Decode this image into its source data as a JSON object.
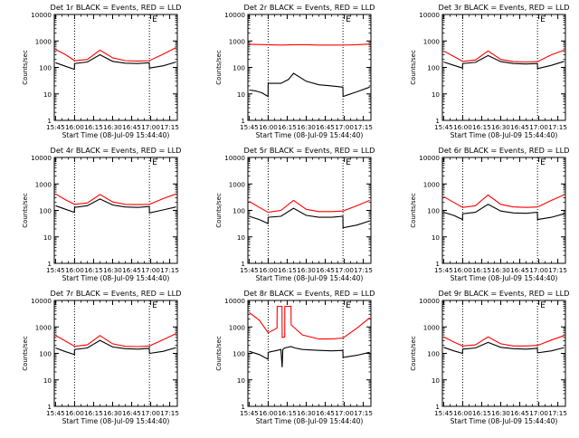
{
  "chart_data": [
    {
      "type": "line",
      "title": "Det 1r BLACK = Events, RED = LLD",
      "xlabel": "Start Time (08-Jul-09 15:44:40)",
      "ylabel": "Counts/sec",
      "ylog": true,
      "ylim": [
        1,
        10000
      ],
      "xlim": [
        -1,
        96
      ],
      "x_tick_values": [
        0,
        15,
        30,
        45,
        60,
        75,
        90
      ],
      "x_tick_labels": [
        "15:45",
        "16:00",
        "16:15",
        "16:30",
        "16:45",
        "17:00",
        "17:15"
      ],
      "y_tick_values": [
        1,
        10,
        100,
        1000,
        10000
      ],
      "y_tick_labels": [
        "1",
        "10",
        "100",
        "1000",
        "10000"
      ],
      "vlines": [
        15,
        74
      ],
      "annotations": [
        "E"
      ],
      "series": [
        {
          "color": "#ff0000",
          "x": [
            0,
            8,
            15,
            25,
            35,
            45,
            55,
            65,
            74,
            85,
            95
          ],
          "y": [
            480,
            300,
            180,
            200,
            450,
            230,
            180,
            175,
            180,
            320,
            560
          ]
        },
        {
          "color": "#000000",
          "x": [
            0,
            8,
            14.9,
            15,
            25,
            35,
            45,
            55,
            65,
            73.9,
            74,
            85,
            95
          ],
          "y": [
            150,
            110,
            85,
            140,
            160,
            300,
            170,
            145,
            140,
            150,
            95,
            115,
            160
          ]
        }
      ]
    },
    {
      "type": "line",
      "title": "Det 2r BLACK = Events, RED = LLD",
      "xlabel": "Start Time (08-Jul-09 15:44:40)",
      "ylabel": "Counts/sec",
      "ylog": true,
      "ylim": [
        1,
        10000
      ],
      "xlim": [
        -1,
        96
      ],
      "x_tick_values": [
        0,
        15,
        30,
        45,
        60,
        75,
        90
      ],
      "x_tick_labels": [
        "15:45",
        "16:00",
        "16:15",
        "16:30",
        "16:45",
        "17:00",
        "17:15"
      ],
      "y_tick_values": [
        1,
        10,
        100,
        1000,
        10000
      ],
      "y_tick_labels": [
        "1",
        "10",
        "100",
        "1000",
        "10000"
      ],
      "vlines": [
        15,
        74
      ],
      "annotations": [
        "E"
      ],
      "series": [
        {
          "color": "#ff0000",
          "x": [
            0,
            15,
            25,
            35,
            45,
            55,
            65,
            74,
            85,
            95
          ],
          "y": [
            750,
            720,
            700,
            720,
            720,
            700,
            700,
            700,
            720,
            760
          ]
        },
        {
          "color": "#000000",
          "x": [
            0,
            5,
            10,
            14.9,
            15,
            25,
            31,
            35,
            45,
            55,
            65,
            73.9,
            74,
            85,
            95
          ],
          "y": [
            14,
            13,
            11,
            8,
            25,
            25,
            35,
            60,
            30,
            22,
            20,
            18,
            8,
            12,
            18
          ]
        }
      ]
    },
    {
      "type": "line",
      "title": "Det 3r BLACK = Events, RED = LLD",
      "xlabel": "Start Time (08-Jul-09 15:44:40)",
      "ylabel": "Counts/sec",
      "ylog": true,
      "ylim": [
        1,
        10000
      ],
      "xlim": [
        -1,
        96
      ],
      "x_tick_values": [
        0,
        15,
        30,
        45,
        60,
        75,
        90
      ],
      "x_tick_labels": [
        "15:45",
        "16:00",
        "16:15",
        "16:30",
        "16:45",
        "17:00",
        "17:15"
      ],
      "y_tick_values": [
        1,
        10,
        100,
        1000,
        10000
      ],
      "y_tick_labels": [
        "1",
        "10",
        "100",
        "1000",
        "10000"
      ],
      "vlines": [
        15,
        74
      ],
      "annotations": [
        "E"
      ],
      "series": [
        {
          "color": "#ff0000",
          "x": [
            0,
            8,
            15,
            25,
            35,
            45,
            55,
            65,
            74,
            85,
            95
          ],
          "y": [
            420,
            260,
            170,
            190,
            420,
            200,
            165,
            160,
            165,
            300,
            450
          ]
        },
        {
          "color": "#000000",
          "x": [
            0,
            8,
            14.9,
            15,
            25,
            35,
            45,
            55,
            65,
            73.9,
            74,
            85,
            95
          ],
          "y": [
            160,
            120,
            95,
            140,
            155,
            280,
            165,
            140,
            135,
            140,
            90,
            120,
            170
          ]
        }
      ]
    },
    {
      "type": "line",
      "title": "Det 4r BLACK = Events, RED = LLD",
      "xlabel": "Start Time (08-Jul-09 15:44:40)",
      "ylabel": "Counts/sec",
      "ylog": true,
      "ylim": [
        1,
        10000
      ],
      "xlim": [
        -1,
        96
      ],
      "x_tick_values": [
        0,
        15,
        30,
        45,
        60,
        75,
        90
      ],
      "x_tick_labels": [
        "15:45",
        "16:00",
        "16:15",
        "16:30",
        "16:45",
        "17:00",
        "17:15"
      ],
      "y_tick_values": [
        1,
        10,
        100,
        1000,
        10000
      ],
      "y_tick_labels": [
        "1",
        "10",
        "100",
        "1000",
        "10000"
      ],
      "vlines": [
        15,
        74
      ],
      "annotations": [
        "E"
      ],
      "series": [
        {
          "color": "#ff0000",
          "x": [
            0,
            8,
            15,
            25,
            35,
            45,
            55,
            65,
            74,
            85,
            95
          ],
          "y": [
            420,
            250,
            170,
            190,
            400,
            210,
            170,
            165,
            170,
            280,
            420
          ]
        },
        {
          "color": "#000000",
          "x": [
            0,
            8,
            14.9,
            15,
            25,
            35,
            45,
            55,
            65,
            73.9,
            74,
            85,
            95
          ],
          "y": [
            150,
            110,
            85,
            130,
            150,
            270,
            160,
            135,
            130,
            140,
            80,
            105,
            135
          ]
        }
      ]
    },
    {
      "type": "line",
      "title": "Det 5r BLACK = Events, RED = LLD",
      "xlabel": "Start Time (08-Jul-09 15:44:40)",
      "ylabel": "Counts/sec",
      "ylog": true,
      "ylim": [
        1,
        10000
      ],
      "xlim": [
        -1,
        96
      ],
      "x_tick_values": [
        0,
        15,
        30,
        45,
        60,
        75,
        90
      ],
      "x_tick_labels": [
        "15:45",
        "16:00",
        "16:15",
        "16:30",
        "16:45",
        "17:00",
        "17:15"
      ],
      "y_tick_values": [
        1,
        10,
        100,
        1000,
        10000
      ],
      "y_tick_labels": [
        "1",
        "10",
        "100",
        "1000",
        "10000"
      ],
      "vlines": [
        15,
        74
      ],
      "annotations": [
        "E"
      ],
      "series": [
        {
          "color": "#ff0000",
          "x": [
            0,
            8,
            15,
            25,
            35,
            45,
            55,
            65,
            74,
            85,
            95
          ],
          "y": [
            220,
            130,
            85,
            100,
            240,
            110,
            90,
            90,
            95,
            150,
            240
          ]
        },
        {
          "color": "#000000",
          "x": [
            0,
            8,
            14.9,
            15,
            25,
            35,
            45,
            55,
            65,
            73.9,
            74,
            85,
            95
          ],
          "y": [
            60,
            45,
            32,
            55,
            60,
            120,
            65,
            55,
            55,
            60,
            22,
            28,
            40
          ]
        }
      ]
    },
    {
      "type": "line",
      "title": "Det 6r BLACK = Events, RED = LLD",
      "xlabel": "Start Time (08-Jul-09 15:44:40)",
      "ylabel": "Counts/sec",
      "ylog": true,
      "ylim": [
        1,
        10000
      ],
      "xlim": [
        -1,
        96
      ],
      "x_tick_values": [
        0,
        15,
        30,
        45,
        60,
        75,
        90
      ],
      "x_tick_labels": [
        "15:45",
        "16:00",
        "16:15",
        "16:30",
        "16:45",
        "17:00",
        "17:15"
      ],
      "y_tick_values": [
        1,
        10,
        100,
        1000,
        10000
      ],
      "y_tick_labels": [
        "1",
        "10",
        "100",
        "1000",
        "10000"
      ],
      "vlines": [
        15,
        74
      ],
      "annotations": [
        "E"
      ],
      "series": [
        {
          "color": "#ff0000",
          "x": [
            0,
            8,
            15,
            25,
            35,
            45,
            55,
            65,
            74,
            85,
            95
          ],
          "y": [
            330,
            200,
            130,
            150,
            380,
            170,
            135,
            130,
            135,
            240,
            390
          ]
        },
        {
          "color": "#000000",
          "x": [
            0,
            8,
            14.9,
            15,
            25,
            35,
            45,
            55,
            65,
            73.9,
            74,
            85,
            95
          ],
          "y": [
            85,
            65,
            45,
            75,
            85,
            170,
            95,
            80,
            78,
            85,
            45,
            55,
            75
          ]
        }
      ]
    },
    {
      "type": "line",
      "title": "Det 7r BLACK = Events, RED = LLD",
      "xlabel": "Start Time (08-Jul-09 15:44:40)",
      "ylabel": "Counts/sec",
      "ylog": true,
      "ylim": [
        1,
        10000
      ],
      "xlim": [
        -1,
        96
      ],
      "x_tick_values": [
        0,
        15,
        30,
        45,
        60,
        75,
        90
      ],
      "x_tick_labels": [
        "15:45",
        "16:00",
        "16:15",
        "16:30",
        "16:45",
        "17:00",
        "17:15"
      ],
      "y_tick_values": [
        1,
        10,
        100,
        1000,
        10000
      ],
      "y_tick_labels": [
        "1",
        "10",
        "100",
        "1000",
        "10000"
      ],
      "vlines": [
        15,
        74
      ],
      "annotations": [
        "E"
      ],
      "series": [
        {
          "color": "#ff0000",
          "x": [
            0,
            8,
            15,
            25,
            35,
            45,
            55,
            65,
            74,
            85,
            95
          ],
          "y": [
            480,
            290,
            185,
            210,
            470,
            230,
            185,
            180,
            190,
            330,
            560
          ]
        },
        {
          "color": "#000000",
          "x": [
            0,
            8,
            14.9,
            15,
            25,
            35,
            45,
            55,
            65,
            73.9,
            74,
            85,
            95
          ],
          "y": [
            160,
            115,
            90,
            140,
            160,
            310,
            175,
            150,
            145,
            155,
            100,
            120,
            165
          ]
        }
      ]
    },
    {
      "type": "line",
      "title": "Det 8r BLACK = Events, RED = LLD",
      "xlabel": "Start Time (08-Jul-09 15:44:40)",
      "ylabel": "Counts/sec",
      "ylog": true,
      "ylim": [
        1,
        10000
      ],
      "xlim": [
        -1,
        96
      ],
      "x_tick_values": [
        0,
        15,
        30,
        45,
        60,
        75,
        90
      ],
      "x_tick_labels": [
        "15:45",
        "16:00",
        "16:15",
        "16:30",
        "16:45",
        "17:00",
        "17:15"
      ],
      "y_tick_values": [
        1,
        10,
        100,
        1000,
        10000
      ],
      "y_tick_labels": [
        "1",
        "10",
        "100",
        "1000",
        "10000"
      ],
      "vlines": [
        15,
        74
      ],
      "annotations": [
        "E"
      ],
      "series": [
        {
          "color": "#ff0000",
          "x": [
            0,
            8,
            15,
            22,
            22.1,
            24,
            25.9,
            26,
            28,
            28.1,
            33,
            33.1,
            36,
            42,
            55,
            65,
            74,
            85,
            95
          ],
          "y": [
            3500,
            1800,
            600,
            900,
            6000,
            6000,
            6000,
            400,
            420,
            6000,
            6000,
            1200,
            900,
            500,
            350,
            350,
            380,
            900,
            2200
          ]
        },
        {
          "color": "#000000",
          "x": [
            0,
            8,
            14.9,
            15,
            22,
            25,
            26,
            26.5,
            28,
            33,
            36,
            42,
            55,
            65,
            73.9,
            74,
            85,
            95
          ],
          "y": [
            120,
            90,
            60,
            110,
            130,
            140,
            30,
            140,
            160,
            180,
            160,
            140,
            130,
            125,
            130,
            70,
            85,
            110
          ]
        }
      ]
    },
    {
      "type": "line",
      "title": "Det 9r BLACK = Events, RED = LLD",
      "xlabel": "Start Time (08-Jul-09 15:44:40)",
      "ylabel": "Counts/sec",
      "ylog": true,
      "ylim": [
        1,
        10000
      ],
      "xlim": [
        -1,
        96
      ],
      "x_tick_values": [
        0,
        15,
        30,
        45,
        60,
        75,
        90
      ],
      "x_tick_labels": [
        "15:45",
        "16:00",
        "16:15",
        "16:30",
        "16:45",
        "17:00",
        "17:15"
      ],
      "y_tick_values": [
        1,
        10,
        100,
        1000,
        10000
      ],
      "y_tick_labels": [
        "1",
        "10",
        "100",
        "1000",
        "10000"
      ],
      "vlines": [
        15,
        74
      ],
      "annotations": [
        "E"
      ],
      "series": [
        {
          "color": "#ff0000",
          "x": [
            0,
            8,
            15,
            25,
            35,
            45,
            55,
            65,
            74,
            85,
            95
          ],
          "y": [
            420,
            270,
            190,
            210,
            420,
            230,
            190,
            190,
            200,
            320,
            470
          ]
        },
        {
          "color": "#000000",
          "x": [
            0,
            8,
            14.9,
            15,
            25,
            35,
            45,
            55,
            65,
            73.9,
            74,
            85,
            95
          ],
          "y": [
            170,
            125,
            100,
            145,
            160,
            260,
            170,
            150,
            145,
            155,
            105,
            125,
            165
          ]
        }
      ]
    }
  ]
}
